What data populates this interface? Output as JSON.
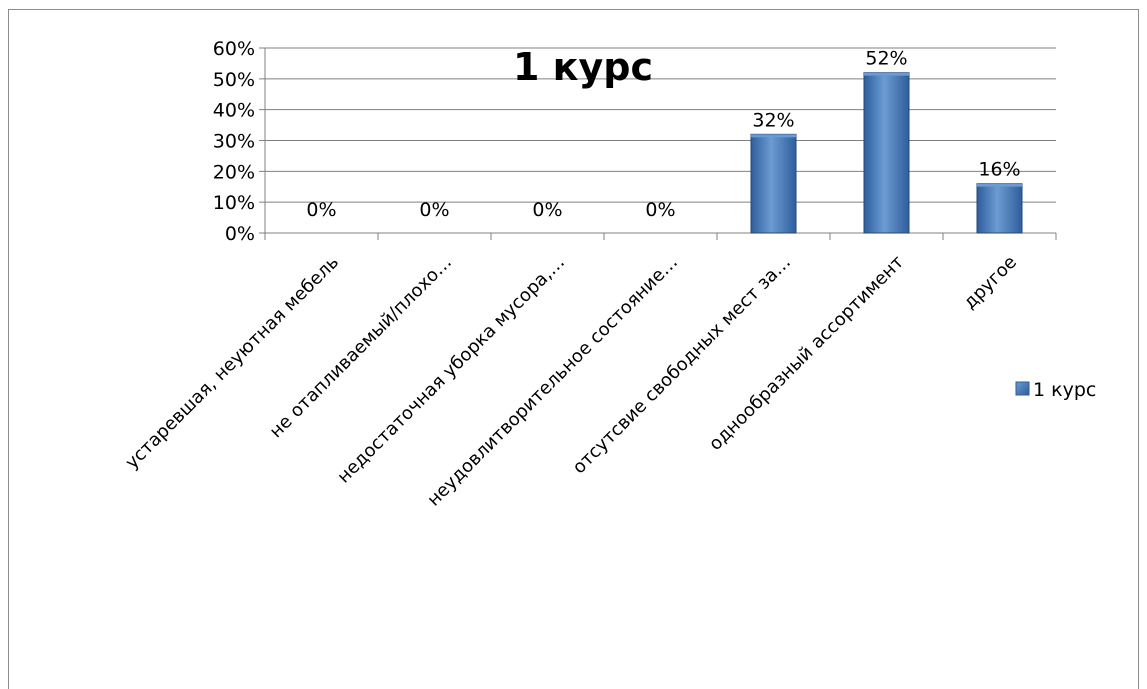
{
  "chart_data": {
    "type": "bar",
    "title": "1 курс",
    "categories": [
      "устаревшая, неуютная мебель",
      "не отапливаемый/плохо…",
      "недостаточная уборка мусора,…",
      "неудовлитворительное состояние…",
      "отсутсвие свободных мест за…",
      "однообразный ассортимент",
      "другое"
    ],
    "series": [
      {
        "name": "1 курс",
        "values": [
          0,
          0,
          0,
          0,
          32,
          52,
          16
        ],
        "data_labels": [
          "0%",
          "0%",
          "0%",
          "0%",
          "32%",
          "52%",
          "16%"
        ]
      }
    ],
    "yticks": [
      "0%",
      "10%",
      "20%",
      "30%",
      "40%",
      "50%",
      "60%"
    ],
    "ylim": [
      0,
      60
    ],
    "grid": true,
    "legend_position": "right",
    "colors": {
      "bar_dark": "#2E5E9C",
      "bar_mid": "#4F81BD",
      "bar_light": "#6C9BD2",
      "gridline": "#808080",
      "axis": "#808080"
    }
  }
}
